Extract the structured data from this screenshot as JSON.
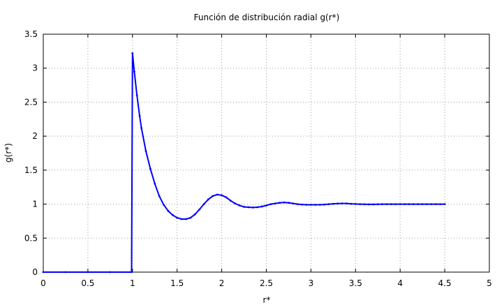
{
  "chart_data": {
    "type": "scatter",
    "title": "Función de distribución radial g(r*)",
    "xlabel": "r*",
    "ylabel": "g(r*)",
    "xlim": [
      0,
      5
    ],
    "ylim": [
      0,
      3.5
    ],
    "xticks": [
      "0",
      "0.5",
      "1",
      "1.5",
      "2",
      "2.5",
      "3",
      "3.5",
      "4",
      "4.5",
      "5"
    ],
    "yticks": [
      "0",
      "0.5",
      "1",
      "1.5",
      "2",
      "2.5",
      "3",
      "3.5"
    ],
    "grid": true,
    "series_color": "#0000ff",
    "series": [
      {
        "x": [
          0.0,
          0.25,
          0.5,
          0.75,
          0.99,
          1.0,
          1.02,
          1.05,
          1.08,
          1.1,
          1.15,
          1.2,
          1.25,
          1.3,
          1.35,
          1.4,
          1.45,
          1.5,
          1.55,
          1.6,
          1.65,
          1.7,
          1.75,
          1.8,
          1.85,
          1.9,
          1.95,
          2.0,
          2.05,
          2.1,
          2.15,
          2.2,
          2.25,
          2.3,
          2.35,
          2.4,
          2.45,
          2.5,
          2.55,
          2.6,
          2.65,
          2.7,
          2.75,
          2.8,
          2.85,
          2.9,
          2.95,
          3.0,
          3.05,
          3.1,
          3.15,
          3.2,
          3.25,
          3.3,
          3.35,
          3.4,
          3.45,
          3.5,
          3.55,
          3.6,
          3.65,
          3.7,
          3.75,
          3.8,
          3.85,
          3.9,
          3.95,
          4.0,
          4.05,
          4.1,
          4.15,
          4.2,
          4.25,
          4.3,
          4.35,
          4.4,
          4.45,
          4.5
        ],
        "y": [
          0.0,
          0.0,
          0.0,
          0.0,
          0.0,
          3.22,
          2.95,
          2.6,
          2.3,
          2.12,
          1.78,
          1.52,
          1.3,
          1.12,
          0.99,
          0.9,
          0.84,
          0.8,
          0.78,
          0.78,
          0.8,
          0.85,
          0.92,
          1.0,
          1.07,
          1.12,
          1.14,
          1.13,
          1.1,
          1.05,
          1.01,
          0.98,
          0.96,
          0.955,
          0.95,
          0.955,
          0.965,
          0.98,
          1.0,
          1.01,
          1.02,
          1.025,
          1.02,
          1.01,
          1.0,
          0.995,
          0.99,
          0.99,
          0.99,
          0.992,
          0.995,
          1.0,
          1.005,
          1.008,
          1.01,
          1.01,
          1.005,
          1.002,
          1.0,
          0.998,
          0.997,
          0.997,
          0.998,
          1.0,
          1.0,
          1.0,
          1.0,
          1.0,
          1.0,
          1.0,
          1.0,
          1.0,
          1.0,
          1.0,
          1.0,
          1.0,
          1.0,
          1.0
        ]
      }
    ]
  }
}
